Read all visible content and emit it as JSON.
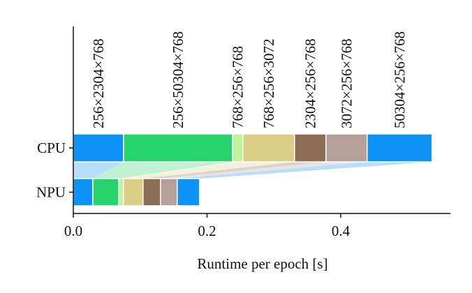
{
  "chart_data": {
    "type": "stacked-barh",
    "categories": [
      "CPU",
      "NPU"
    ],
    "series": [
      {
        "name": "256×2304×768",
        "color": "#0f92f5",
        "values": [
          0.0752,
          0.0292
        ]
      },
      {
        "name": "256×50304×768",
        "color": "#27d36b",
        "values": [
          0.1628,
          0.0386
        ]
      },
      {
        "name": "768×256×768",
        "color": "#bff59a",
        "values": [
          0.0157,
          0.0073
        ]
      },
      {
        "name": "768×256×3072",
        "color": "#dbcf86",
        "values": [
          0.0772,
          0.0292
        ]
      },
      {
        "name": "2304×256×768",
        "color": "#8c6d55",
        "values": [
          0.047,
          0.0261
        ]
      },
      {
        "name": "3072×256×768",
        "color": "#b5a19a",
        "values": [
          0.0616,
          0.025
        ]
      },
      {
        "name": "50304×256×768",
        "color": "#0f92f5",
        "values": [
          0.0971,
          0.0334
        ]
      }
    ],
    "xlabel": "Runtime per epoch [s]",
    "xlim": [
      0,
      0.564
    ],
    "xticks": [
      {
        "value": 0,
        "label": "0.0"
      },
      {
        "value": 0.2,
        "label": "0.2"
      },
      {
        "value": 0.4,
        "label": "0.4"
      }
    ]
  }
}
